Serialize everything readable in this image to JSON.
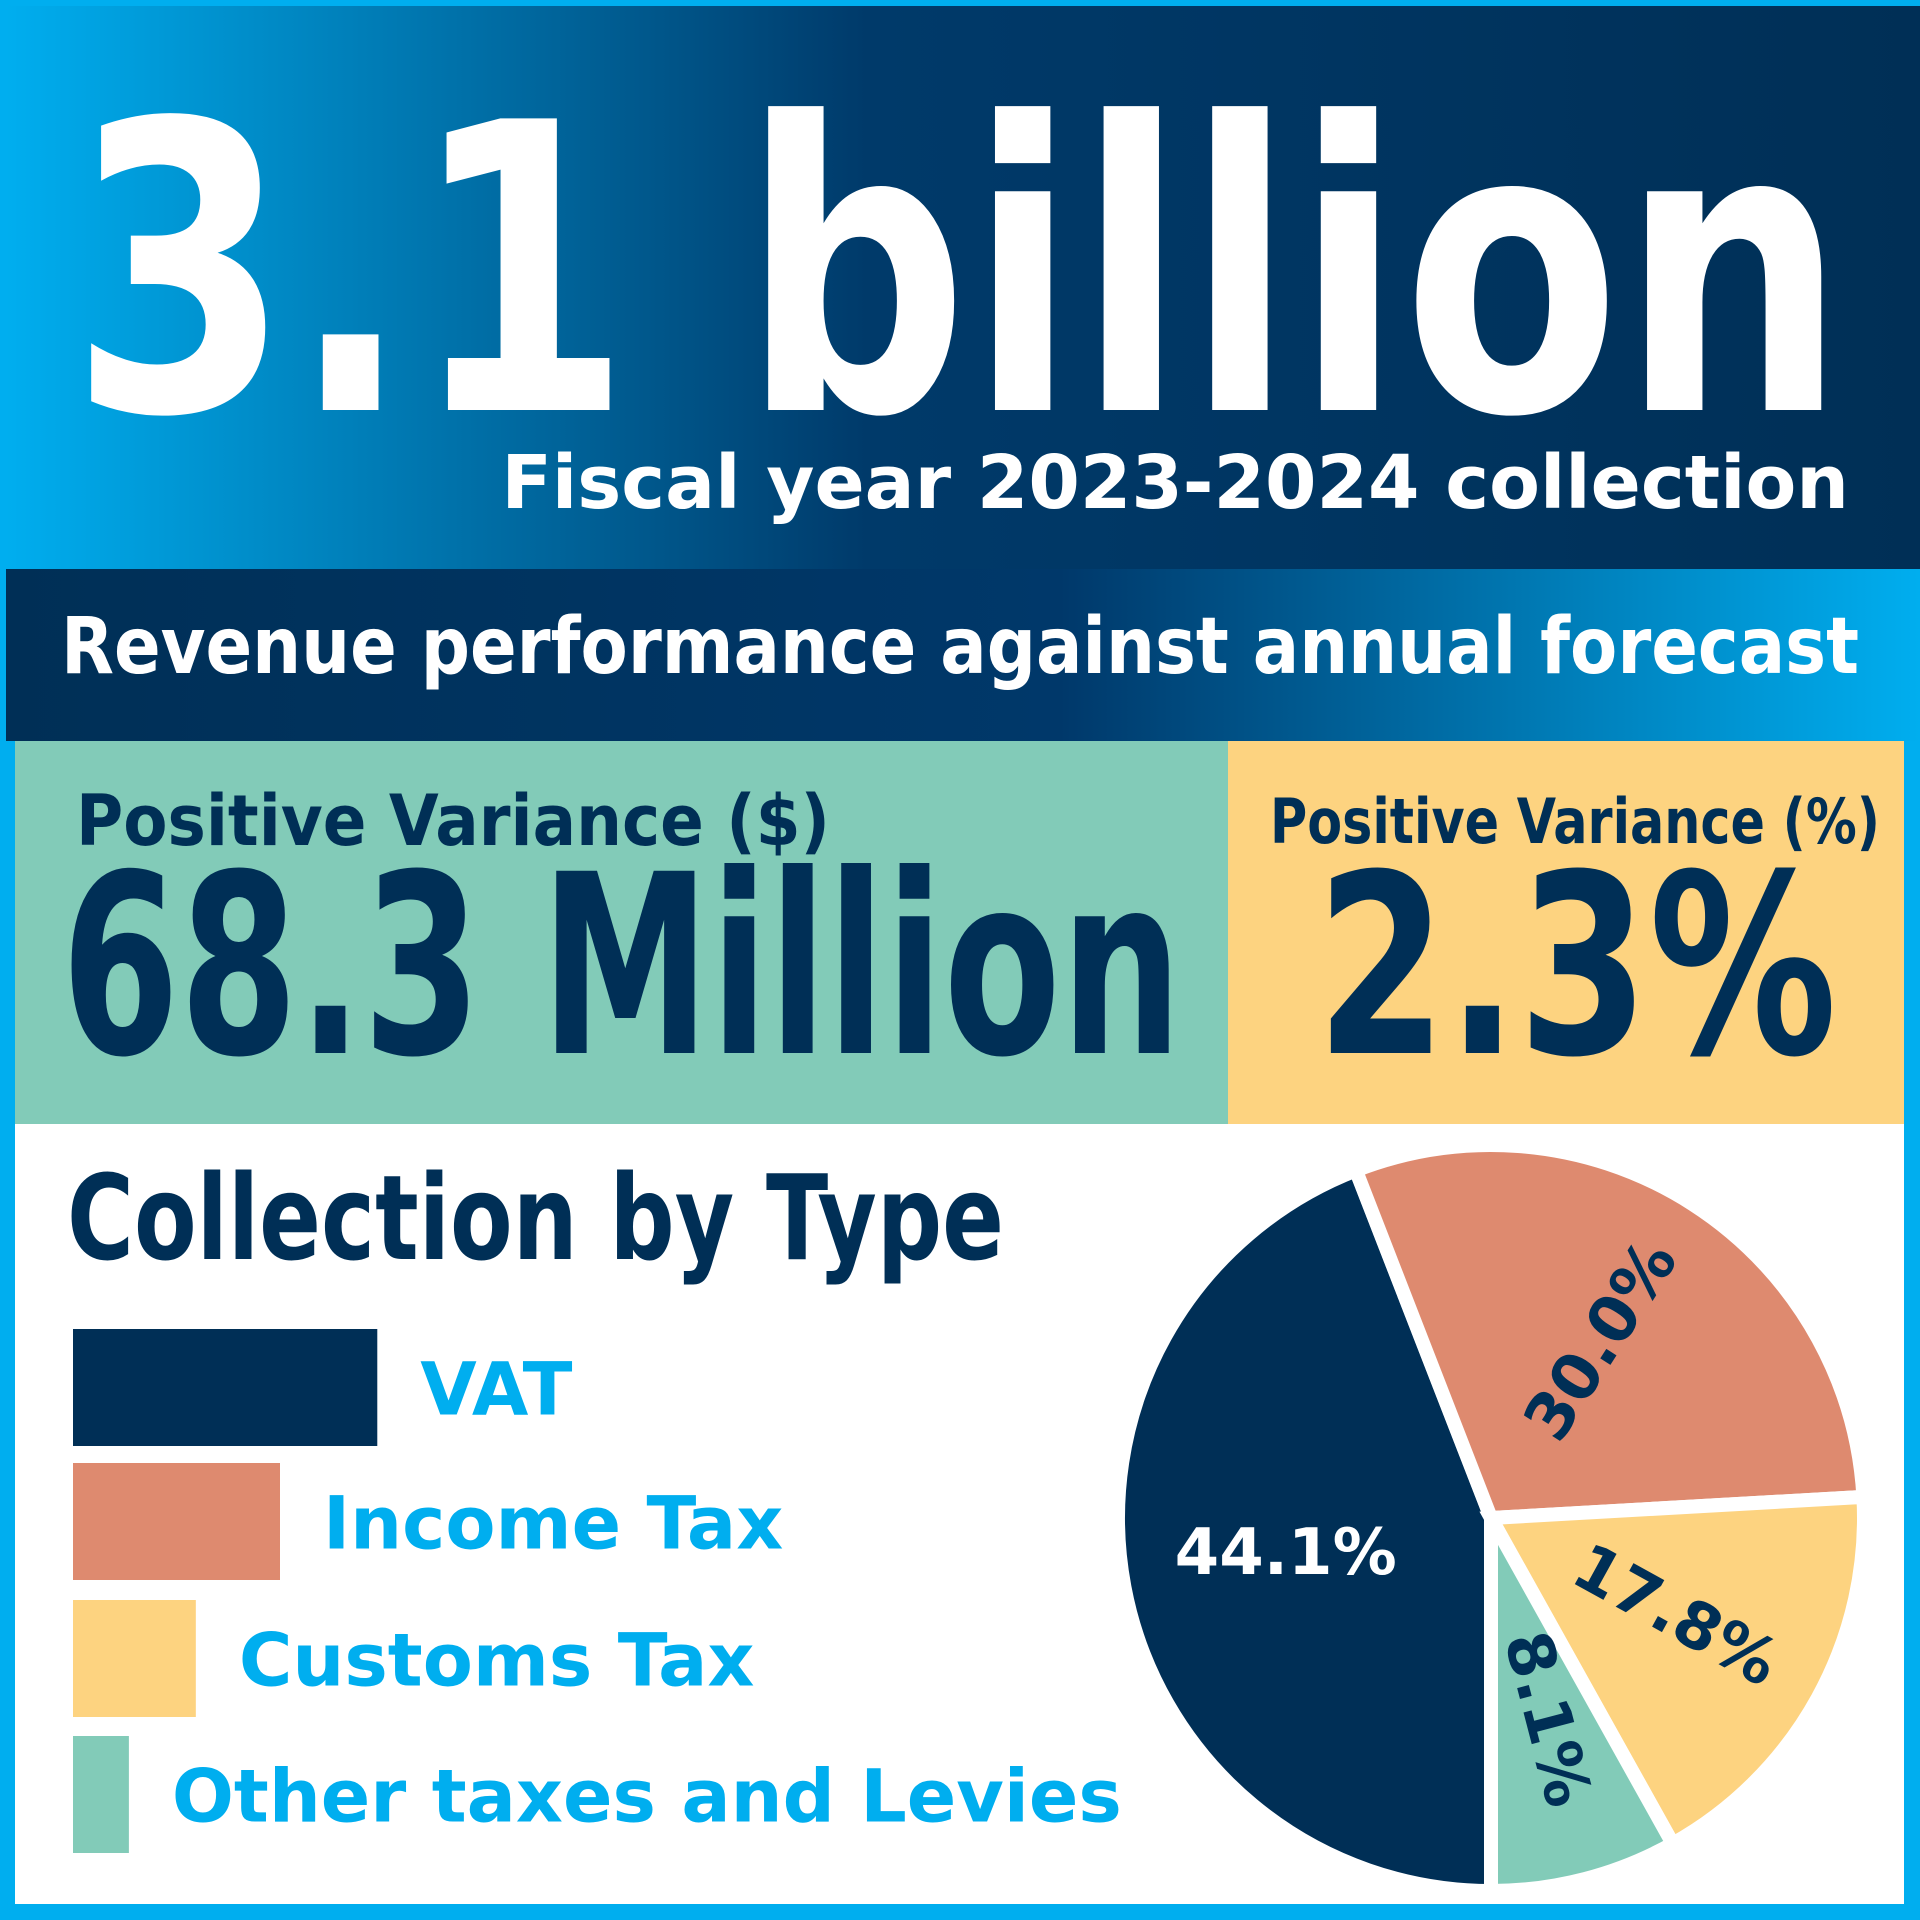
{
  "header": {
    "headline": "3.1 billion",
    "subtitle": "Fiscal year 2023-2024 collection"
  },
  "banner": "Revenue performance against annual forecast",
  "stats": [
    {
      "label": "Positive Variance ($)",
      "value": "68.3 Million"
    },
    {
      "label": "Positive Variance (%)",
      "value": "2.3%"
    }
  ],
  "chart_data": {
    "type": "pie",
    "title": "Collection by Type",
    "categories": [
      "VAT",
      "Income Tax",
      "Customs Tax",
      "Other taxes and Levies"
    ],
    "values": [
      44.1,
      30.0,
      17.8,
      8.1
    ],
    "value_labels": [
      "44.1%",
      "30.0%",
      "17.8%",
      "8.1%"
    ],
    "colors": [
      "#002f56",
      "#de8a6f",
      "#fdd380",
      "#82cbb8"
    ]
  }
}
